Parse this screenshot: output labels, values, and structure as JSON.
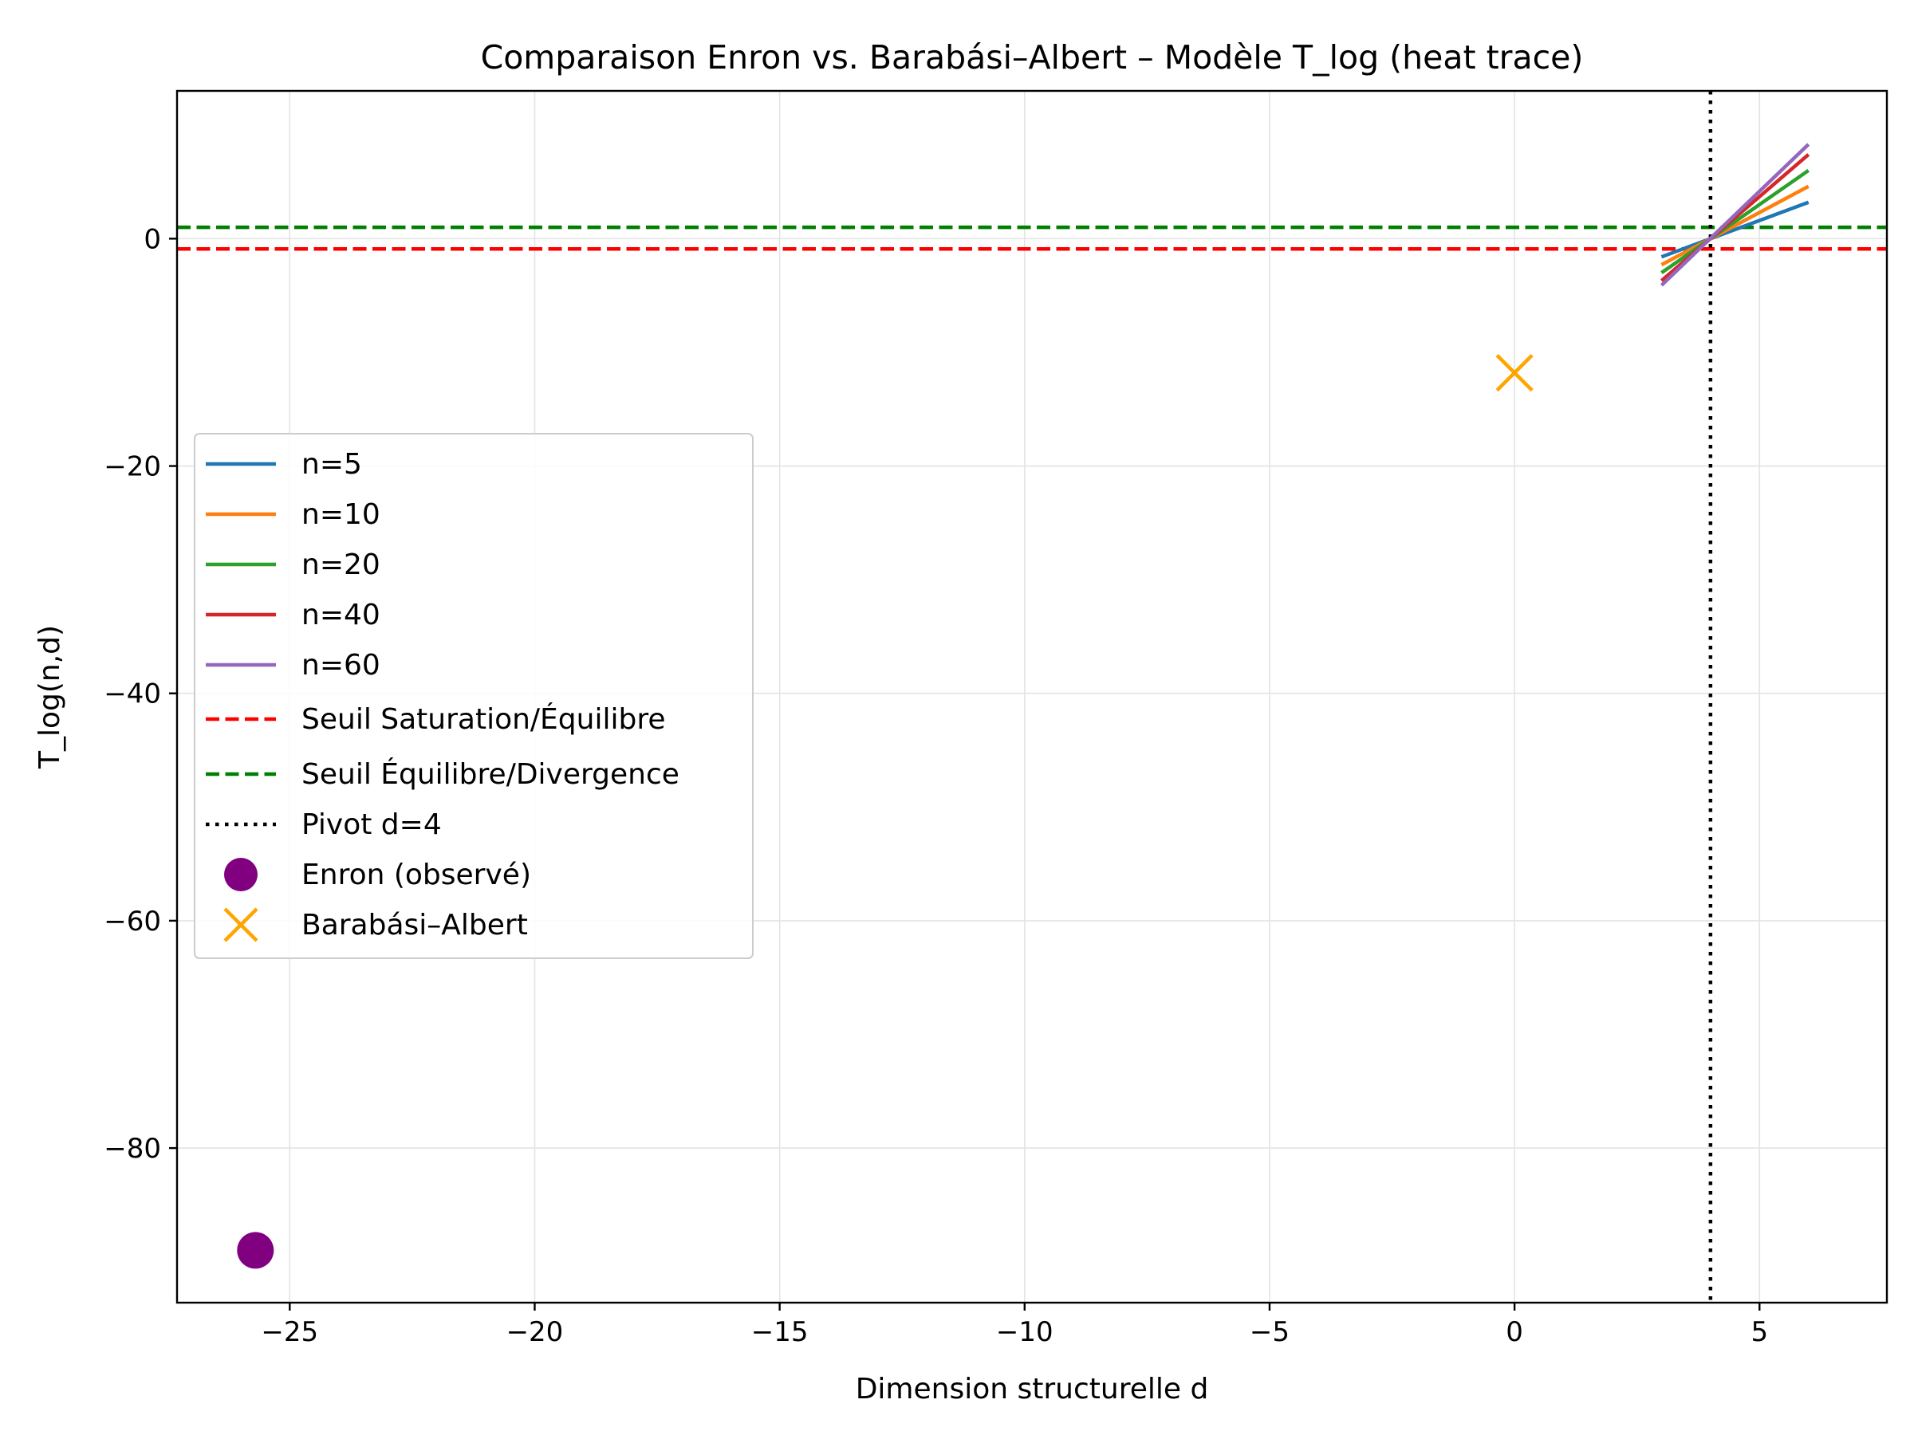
{
  "chart_data": {
    "type": "line",
    "title": "Comparaison Enron vs. Barabási–Albert – Modèle T_log (heat trace)",
    "xlabel": "Dimension structurelle d",
    "ylabel": "T_log(n,d)",
    "xlim": [
      -27.3,
      7.6
    ],
    "ylim": [
      -93.6,
      13.0
    ],
    "xticks": [
      -25,
      -20,
      -15,
      -10,
      -5,
      0,
      5
    ],
    "xtick_labels": [
      "−25",
      "−20",
      "−15",
      "−10",
      "−5",
      "0",
      "5"
    ],
    "yticks": [
      0,
      -20,
      -40,
      -60,
      -80
    ],
    "ytick_labels": [
      "0",
      "−20",
      "−40",
      "−60",
      "−80"
    ],
    "grid": true,
    "legend_position": "center-left",
    "series": [
      {
        "name": "n=5",
        "color": "#1f77b4",
        "x": [
          3,
          6
        ],
        "y": [
          -1.6,
          3.2
        ]
      },
      {
        "name": "n=10",
        "color": "#ff7f0e",
        "x": [
          3,
          6
        ],
        "y": [
          -2.3,
          4.6
        ]
      },
      {
        "name": "n=20",
        "color": "#2ca02c",
        "x": [
          3,
          6
        ],
        "y": [
          -3.0,
          6.0
        ]
      },
      {
        "name": "n=40",
        "color": "#d62728",
        "x": [
          3,
          6
        ],
        "y": [
          -3.7,
          7.4
        ]
      },
      {
        "name": "n=60",
        "color": "#9467bd",
        "x": [
          3,
          6
        ],
        "y": [
          -4.1,
          8.3
        ]
      }
    ],
    "hlines": [
      {
        "name": "Seuil Saturation/Équilibre",
        "color": "#ff0000",
        "y": -0.9,
        "style": "dashed"
      },
      {
        "name": "Seuil Équilibre/Divergence",
        "color": "#008000",
        "y": 1.0,
        "style": "dashed"
      }
    ],
    "vlines": [
      {
        "name": "Pivot d=4",
        "color": "#000000",
        "x": 4,
        "style": "dotted"
      }
    ],
    "points": [
      {
        "name": "Enron (observé)",
        "color": "#800080",
        "marker": "circle",
        "x": -25.7,
        "y": -89.0
      },
      {
        "name": "Barabási–Albert",
        "color": "#ffa500",
        "marker": "x",
        "x": 0.0,
        "y": -11.8
      }
    ]
  }
}
